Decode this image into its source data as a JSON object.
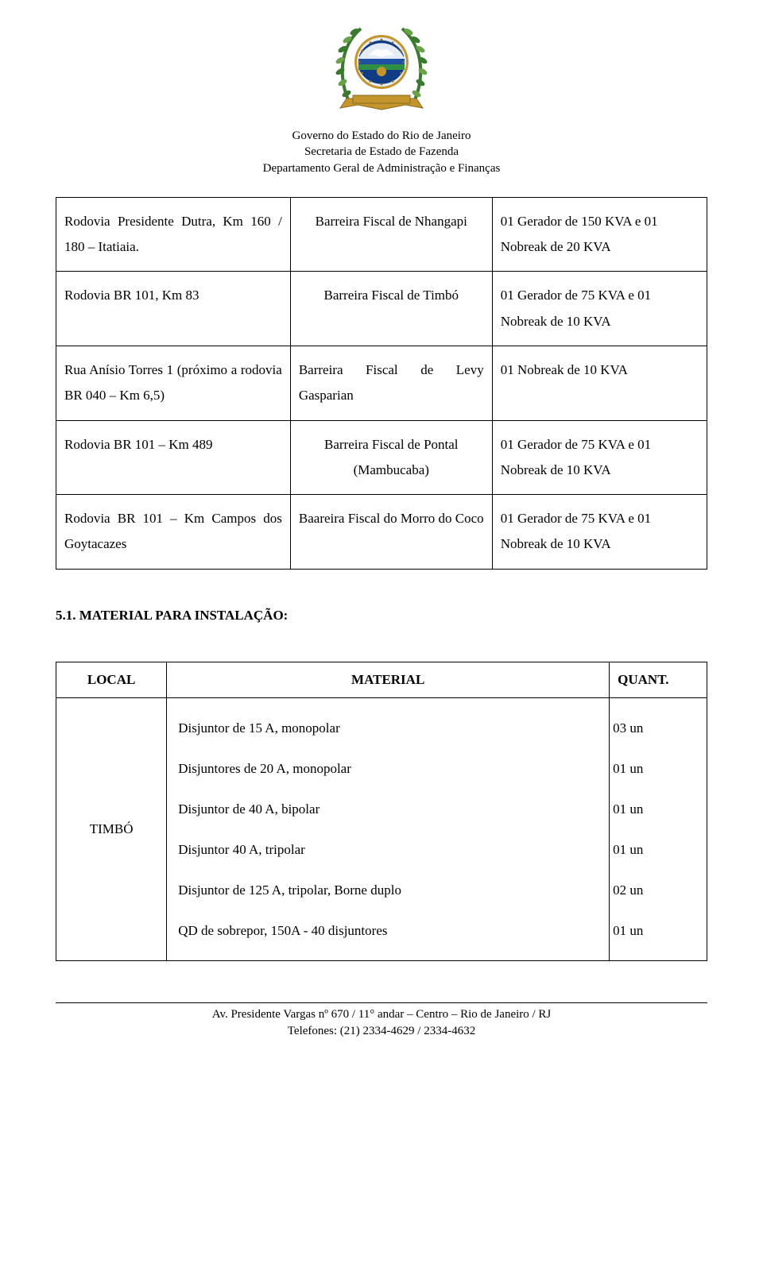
{
  "header": {
    "line1": "Governo do Estado do Rio de Janeiro",
    "line2": "Secretaria de Estado de Fazenda",
    "line3": "Departamento Geral de Administração e Finanças"
  },
  "emblem": {
    "width": 132,
    "height": 128,
    "colors": {
      "leaf": "#3a7a2e",
      "leaf_light": "#6aa24a",
      "band_blue": "#1f4fa0",
      "band_green": "#2e8f45",
      "center_blue": "#0f3c84",
      "inner": "#e6ecf5",
      "gold": "#c3952c",
      "gold_dark": "#8a6a1d",
      "white": "#ffffff"
    }
  },
  "table1": {
    "rows": [
      {
        "c1": "Rodovia Presidente Dutra, Km 160 / 180 – Itatiaia.",
        "c2": "Barreira Fiscal de Nhangapi",
        "c3": "01 Gerador de 150 KVA e 01 Nobreak de 20 KVA"
      },
      {
        "c1": "Rodovia BR 101, Km 83",
        "c2": "Barreira Fiscal de Timbó",
        "c3": "01 Gerador de 75 KVA e 01 Nobreak de 10 KVA"
      },
      {
        "c1": "Rua Anísio Torres 1 (próximo a rodovia BR 040 – Km 6,5)",
        "c2": "Barreira Fiscal de Levy Gasparian",
        "c3": "01 Nobreak de 10 KVA",
        "c2_align": "just"
      },
      {
        "c1": "Rodovia BR 101 – Km 489",
        "c2": "Barreira Fiscal de Pontal (Mambucaba)",
        "c3": "01 Gerador de 75 KVA e 01 Nobreak de 10 KVA"
      },
      {
        "c1": "Rodovia BR 101 – Km Campos dos Goytacazes",
        "c2": "Baareira Fiscal do Morro do Coco",
        "c3": "01 Gerador de 75 KVA e 01 Nobreak de 10 KVA"
      }
    ]
  },
  "section_title": "5.1. MATERIAL PARA INSTALAÇÃO:",
  "table2": {
    "headers": {
      "local": "LOCAL",
      "material": "MATERIAL",
      "quant": "QUANT."
    },
    "local_label": "TIMBÓ",
    "items": [
      {
        "desc": "Disjuntor de 15 A, monopolar",
        "qty": "03 un"
      },
      {
        "desc": "Disjuntores de 20 A, monopolar",
        "qty": "01 un"
      },
      {
        "desc": "Disjuntor de 40 A, bipolar",
        "qty": "01 un"
      },
      {
        "desc": "Disjuntor 40 A, tripolar",
        "qty": "01 un"
      },
      {
        "desc": "Disjuntor de 125 A, tripolar, Borne duplo",
        "qty": "02 un"
      },
      {
        "desc": "QD de sobrepor, 150A - 40 disjuntores",
        "qty": "01 un"
      }
    ]
  },
  "footer": {
    "line1": "Av. Presidente Vargas nº 670 / 11° andar – Centro – Rio de Janeiro / RJ",
    "line2": "Telefones: (21) 2334-4629 / 2334-4632"
  }
}
